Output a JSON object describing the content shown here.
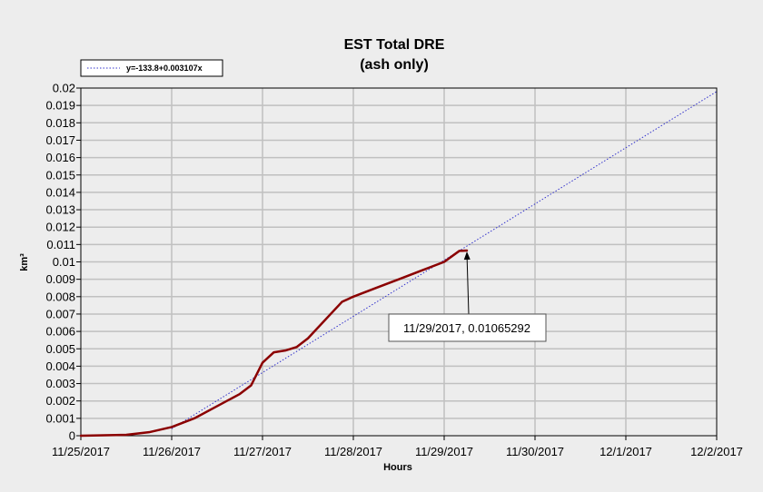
{
  "chart_data": {
    "type": "line",
    "title": "EST Total DRE",
    "subtitle": "(ash only)",
    "xlabel": "Hours",
    "ylabel": "km³",
    "x_ticks": [
      "11/25/2017",
      "11/26/2017",
      "11/27/2017",
      "11/28/2017",
      "11/29/2017",
      "11/30/2017",
      "12/1/2017",
      "12/2/2017"
    ],
    "y_ticks": [
      "0",
      "0.001",
      "0.002",
      "0.003",
      "0.004",
      "0.005",
      "0.006",
      "0.007",
      "0.008",
      "0.009",
      "0.01",
      "0.011",
      "0.012",
      "0.013",
      "0.014",
      "0.015",
      "0.016",
      "0.017",
      "0.018",
      "0.019",
      "0.02"
    ],
    "xlim": [
      "11/25/2017",
      "12/2/2017"
    ],
    "ylim": [
      0,
      0.02
    ],
    "grid": true,
    "legend_position": "top-left",
    "series": [
      {
        "style": "solid",
        "color": "#8b0000",
        "x": [
          "11/25/2017 00:00",
          "11/25/2017 12:00",
          "11/25/2017 18:00",
          "11/26/2017 00:00",
          "11/26/2017 06:00",
          "11/26/2017 12:00",
          "11/26/2017 18:00",
          "11/26/2017 21:00",
          "11/27/2017 00:00",
          "11/27/2017 03:00",
          "11/27/2017 06:00",
          "11/27/2017 09:00",
          "11/27/2017 12:00",
          "11/27/2017 18:00",
          "11/27/2017 21:00",
          "11/28/2017 00:00",
          "11/28/2017 06:00",
          "11/28/2017 12:00",
          "11/28/2017 18:00",
          "11/29/2017 00:00",
          "11/29/2017 04:00",
          "11/29/2017 06:00"
        ],
        "y": [
          0,
          5e-05,
          0.0002,
          0.0005,
          0.001,
          0.0017,
          0.0024,
          0.0029,
          0.0042,
          0.0048,
          0.0049,
          0.0051,
          0.0056,
          0.007,
          0.0077,
          0.008,
          0.0085,
          0.009,
          0.0095,
          0.01,
          0.01063,
          0.01065292
        ]
      },
      {
        "name": "y=-133.8+0.003107x",
        "style": "dotted",
        "color": "#3333cc",
        "x": [
          "11/26/2017 00:00",
          "12/2/2017 00:00"
        ],
        "y": [
          0.0004,
          0.0198
        ]
      }
    ],
    "annotation": {
      "text": "11/29/2017, 0.01065292",
      "x": "11/29/2017 06:00",
      "y": 0.01065292
    }
  }
}
